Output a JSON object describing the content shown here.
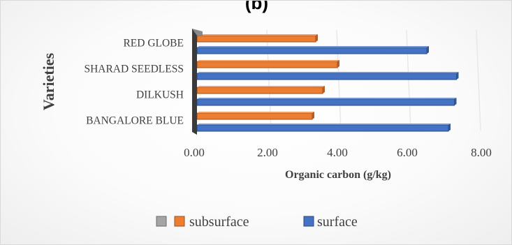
{
  "chart_data": {
    "type": "bar",
    "orientation": "horizontal",
    "title": "(b)",
    "xlabel": "Organic carbon (g/kg)",
    "ylabel": "Varieties",
    "categories": [
      "BANGALORE BLUE",
      "DILKUSH",
      "SHARAD SEEDLESS",
      "RED GLOBE"
    ],
    "x_tick_labels": [
      "0.00",
      "2.00",
      "4.00",
      "6.00",
      "8.00"
    ],
    "xlim": [
      0,
      8
    ],
    "grid": true,
    "legend_position": "bottom",
    "series": [
      {
        "name": "",
        "color": "#a5a5a5",
        "values": [
          0,
          0,
          0,
          0
        ]
      },
      {
        "name": "subsurface",
        "color": "#ed7d31",
        "values": [
          3.3,
          3.6,
          4.02,
          3.4
        ]
      },
      {
        "name": "surface",
        "color": "#4472c4",
        "values": [
          7.2,
          7.37,
          7.43,
          6.58
        ]
      }
    ]
  }
}
